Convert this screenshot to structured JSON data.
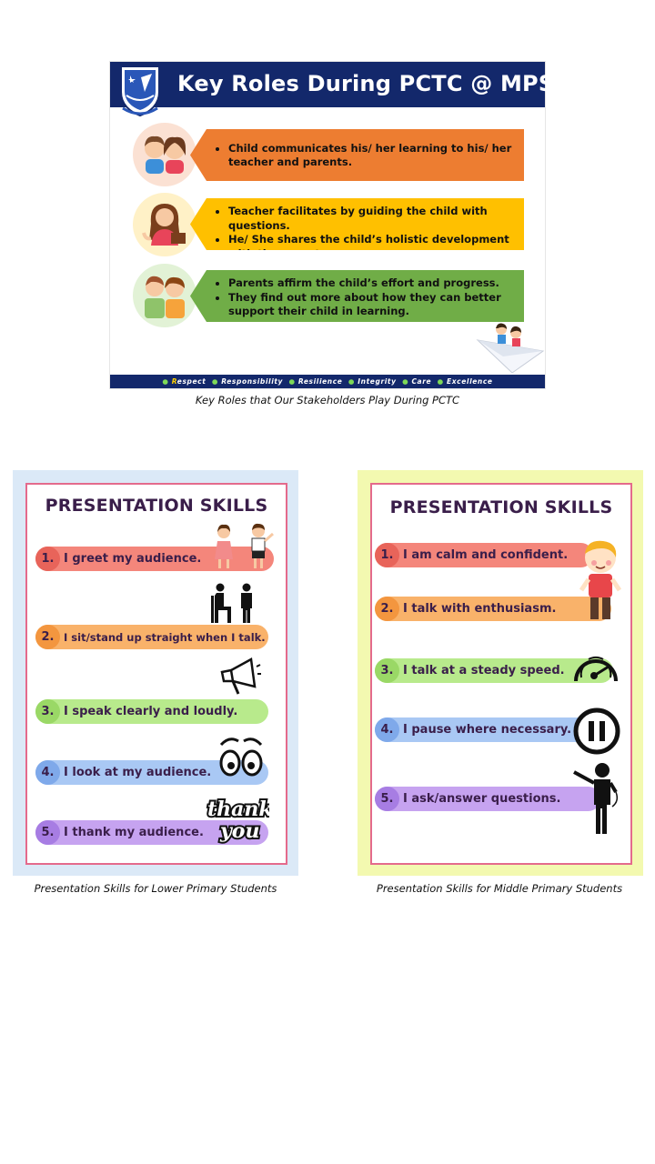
{
  "slide": {
    "title": "Key Roles During PCTC @ MPS",
    "roles": [
      {
        "bullets": [
          "Child communicates his/ her learning to his/ her teacher and parents."
        ],
        "icon": "children-icon",
        "color": "#ed7d31"
      },
      {
        "bullets": [
          "Teacher facilitates by guiding the child with questions.",
          "He/ She shares the child’s holistic development with the parents."
        ],
        "icon": "teacher-icon",
        "color": "#ffc000"
      },
      {
        "bullets": [
          "Parents affirm the child’s effort and progress.",
          "They find out more about how they can better support their child in learning."
        ],
        "icon": "parents-icon",
        "color": "#70ad47"
      }
    ],
    "values": [
      "Respect",
      "Responsibility",
      "Resilience",
      "Integrity",
      "Care",
      "Excellence"
    ],
    "caption": "Key Roles that Our Stakeholders Play During PCTC"
  },
  "poster_lower": {
    "title": "PRESENTATION SKILLS",
    "items": [
      {
        "num": "1.",
        "text": "I greet my audience.",
        "color": "#f4867b"
      },
      {
        "num": "2.",
        "text": "I sit/stand up straight when I talk.",
        "color": "#f9b26a"
      },
      {
        "num": "3.",
        "text": "I speak clearly and loudly.",
        "color": "#b8ea8c"
      },
      {
        "num": "4.",
        "text": "I look at my audience.",
        "color": "#a9c8f4"
      },
      {
        "num": "5.",
        "text": "I thank my audience.",
        "color": "#c6a3f0"
      }
    ],
    "thank_you_art": "thank you",
    "caption": "Presentation Skills for Lower Primary Students",
    "background": "#dbe9f7"
  },
  "poster_middle": {
    "title": "PRESENTATION SKILLS",
    "items": [
      {
        "num": "1.",
        "text": "I am calm and confident.",
        "color": "#f4867b"
      },
      {
        "num": "2.",
        "text": "I talk with enthusiasm.",
        "color": "#f9b26a"
      },
      {
        "num": "3.",
        "text": "I talk at a steady speed.",
        "color": "#b8ea8c"
      },
      {
        "num": "4.",
        "text": "I pause where necessary.",
        "color": "#a9c8f4"
      },
      {
        "num": "5.",
        "text": "I ask/answer questions.",
        "color": "#c6a3f0"
      }
    ],
    "caption": "Presentation Skills for Middle Primary Students",
    "background": "#f3f9b0"
  }
}
